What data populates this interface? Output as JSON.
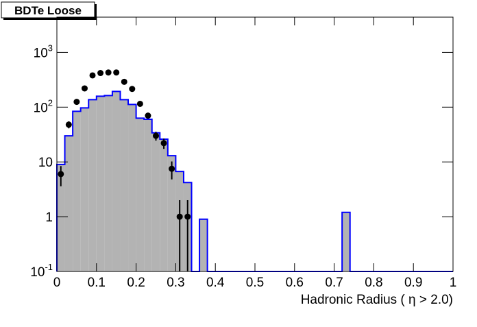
{
  "chart_data": {
    "type": "histogram",
    "title": "BDTe Loose",
    "x_label": "Hadronic Radius ( η > 2.0)",
    "log_y": true,
    "xlim": [
      0,
      1
    ],
    "ylim": [
      0.1,
      4400
    ],
    "xticks": [
      0,
      0.1,
      0.2,
      0.3,
      0.4,
      0.5,
      0.6,
      0.7,
      0.8,
      0.9,
      1
    ],
    "yticks": [
      {
        "value": 0.1,
        "label": "10",
        "exponent": "-1"
      },
      1,
      10,
      {
        "value": 100,
        "label": "10",
        "exponent": "2"
      },
      {
        "value": 1000,
        "label": "10",
        "exponent": "3"
      }
    ],
    "histogram": {
      "color": "#0000ff",
      "fill": "#b3b3b3",
      "bins": [
        0,
        0.02,
        0.04,
        0.06,
        0.08,
        0.1,
        0.12,
        0.14,
        0.16,
        0.18,
        0.2,
        0.22,
        0.24,
        0.26,
        0.28,
        0.3,
        0.32,
        0.34,
        0.36,
        0.38,
        0.4,
        0.42,
        0.44,
        0.46,
        0.48,
        0.5,
        0.52,
        0.54,
        0.56,
        0.58,
        0.6,
        0.62,
        0.64,
        0.66,
        0.68,
        0.7,
        0.72,
        0.74,
        0.76,
        0.78,
        0.8,
        0.82,
        0.84,
        0.86,
        0.88,
        0.9,
        0.92,
        0.94,
        0.96,
        0.98,
        1
      ],
      "values": [
        9,
        30,
        84,
        97,
        137,
        158,
        163,
        194,
        137,
        112,
        63,
        60,
        34,
        26,
        13,
        6.7,
        4.2,
        0,
        0.9,
        0,
        0,
        0,
        0,
        0,
        0,
        0,
        0,
        0,
        0,
        0,
        0,
        0,
        0,
        0,
        0,
        0,
        1.2,
        0,
        0,
        0,
        0,
        0,
        0,
        0,
        0,
        0,
        0,
        0,
        0,
        0
      ]
    },
    "points": {
      "color": "#000000",
      "x": [
        0.01,
        0.03,
        0.05,
        0.07,
        0.09,
        0.11,
        0.13,
        0.15,
        0.17,
        0.19,
        0.21,
        0.23,
        0.25,
        0.27,
        0.29,
        0.31,
        0.33
      ],
      "values": [
        6,
        48,
        125,
        220,
        380,
        420,
        430,
        430,
        290,
        215,
        115,
        70,
        30,
        22,
        7.5,
        1,
        1
      ],
      "errors": [
        2.4,
        7,
        11,
        15,
        19,
        20,
        21,
        21,
        17,
        15,
        11,
        8,
        5.5,
        4.7,
        2.7,
        1,
        1
      ]
    }
  }
}
